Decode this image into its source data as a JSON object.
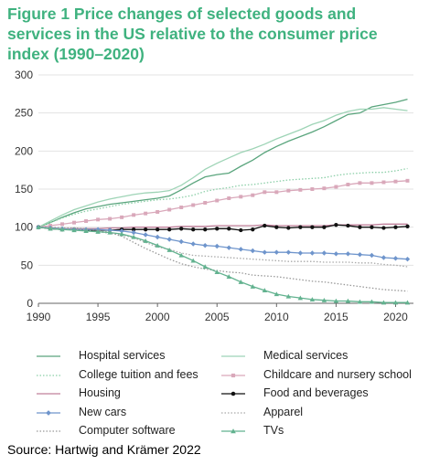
{
  "chart_data": {
    "type": "line",
    "title": "Figure 1 Price changes of selected goods and services in the US relative to the consumer price index (1990–2020)",
    "xlabel": "",
    "ylabel": "",
    "x_ticks": [
      1990,
      1995,
      2000,
      2005,
      2010,
      2015,
      2020
    ],
    "y_ticks": [
      0,
      50,
      100,
      150,
      200,
      250,
      300
    ],
    "xlim": [
      1990,
      2021.5
    ],
    "ylim": [
      0,
      300
    ],
    "grid": "horizontal",
    "legend_position": "bottom",
    "source": "Source: Hartwig and Krämer 2022",
    "x": [
      1990,
      1991,
      1992,
      1993,
      1994,
      1995,
      1996,
      1997,
      1998,
      1999,
      2000,
      2001,
      2002,
      2003,
      2004,
      2005,
      2006,
      2007,
      2008,
      2009,
      2010,
      2011,
      2012,
      2013,
      2014,
      2015,
      2016,
      2017,
      2018,
      2019,
      2020,
      2021
    ],
    "series": [
      {
        "name": "Hospital services",
        "color": "#5aa57d",
        "style": "solid",
        "marker": "none",
        "values": [
          100,
          106,
          113,
          119,
          124,
          127,
          130,
          132,
          134,
          136,
          138,
          141,
          149,
          158,
          166,
          169,
          171,
          180,
          188,
          198,
          206,
          213,
          219,
          225,
          232,
          240,
          248,
          250,
          258,
          261,
          264,
          268
        ]
      },
      {
        "name": "Medical services",
        "color": "#9ed4b6",
        "style": "solid",
        "marker": "none",
        "values": [
          100,
          108,
          116,
          123,
          128,
          133,
          137,
          140,
          143,
          145,
          146,
          148,
          155,
          165,
          176,
          184,
          191,
          198,
          203,
          209,
          216,
          222,
          228,
          235,
          240,
          247,
          252,
          255,
          255,
          257,
          255,
          253
        ]
      },
      {
        "name": "College tuition and fees",
        "color": "#8ccfa8",
        "style": "dotted",
        "marker": "none",
        "values": [
          100,
          106,
          112,
          117,
          121,
          124,
          127,
          130,
          132,
          134,
          136,
          137,
          139,
          142,
          147,
          150,
          152,
          155,
          156,
          158,
          160,
          162,
          163,
          164,
          165,
          168,
          170,
          171,
          172,
          172,
          174,
          177
        ]
      },
      {
        "name": "Childcare and nursery school",
        "color": "#d9a8ba",
        "style": "solid",
        "marker": "square",
        "values": [
          100,
          102,
          104,
          106,
          108,
          110,
          111,
          113,
          116,
          118,
          120,
          123,
          126,
          129,
          132,
          135,
          138,
          140,
          142,
          146,
          146,
          148,
          149,
          150,
          151,
          153,
          156,
          158,
          158,
          159,
          160,
          161
        ]
      },
      {
        "name": "Housing",
        "color": "#c0809b",
        "style": "solid",
        "marker": "none",
        "values": [
          100,
          99,
          98,
          98,
          98,
          98,
          99,
          99,
          100,
          100,
          100,
          100,
          101,
          101,
          101,
          102,
          102,
          102,
          102,
          103,
          102,
          102,
          102,
          102,
          102,
          103,
          103,
          103,
          103,
          104,
          104,
          104
        ]
      },
      {
        "name": "Food and beverages",
        "color": "#111111",
        "style": "solid",
        "marker": "dot",
        "values": [
          100,
          98,
          97,
          97,
          96,
          96,
          96,
          97,
          97,
          97,
          97,
          97,
          98,
          97,
          97,
          98,
          98,
          96,
          97,
          102,
          100,
          99,
          100,
          100,
          100,
          103,
          102,
          100,
          100,
          99,
          100,
          101
        ]
      },
      {
        "name": "New cars",
        "color": "#6f95cc",
        "style": "solid",
        "marker": "diamond",
        "values": [
          100,
          99,
          98,
          97,
          97,
          97,
          96,
          95,
          93,
          90,
          87,
          84,
          81,
          78,
          76,
          75,
          73,
          71,
          69,
          67,
          67,
          67,
          66,
          66,
          66,
          65,
          65,
          64,
          63,
          60,
          59,
          58
        ]
      },
      {
        "name": "Apparel",
        "color": "#aaaaaa",
        "style": "dotted",
        "marker": "none",
        "values": [
          100,
          99,
          98,
          97,
          96,
          94,
          92,
          90,
          86,
          80,
          74,
          71,
          66,
          63,
          62,
          61,
          60,
          59,
          58,
          57,
          56,
          55,
          55,
          55,
          54,
          54,
          54,
          53,
          53,
          51,
          50,
          48
        ]
      },
      {
        "name": "Computer software",
        "color": "#999999",
        "style": "dotted",
        "marker": "none",
        "values": [
          100,
          100,
          99,
          99,
          98,
          96,
          93,
          88,
          80,
          72,
          65,
          58,
          52,
          48,
          45,
          43,
          41,
          40,
          37,
          36,
          35,
          33,
          31,
          29,
          28,
          26,
          24,
          22,
          20,
          18,
          17,
          16
        ]
      },
      {
        "name": "TVs",
        "color": "#62b28f",
        "style": "solid",
        "marker": "triangle",
        "values": [
          100,
          98,
          97,
          96,
          95,
          94,
          93,
          91,
          87,
          82,
          76,
          70,
          63,
          56,
          48,
          41,
          35,
          28,
          22,
          17,
          12,
          9,
          7,
          5,
          4,
          3,
          3,
          2,
          2,
          1,
          1,
          1
        ]
      }
    ]
  }
}
